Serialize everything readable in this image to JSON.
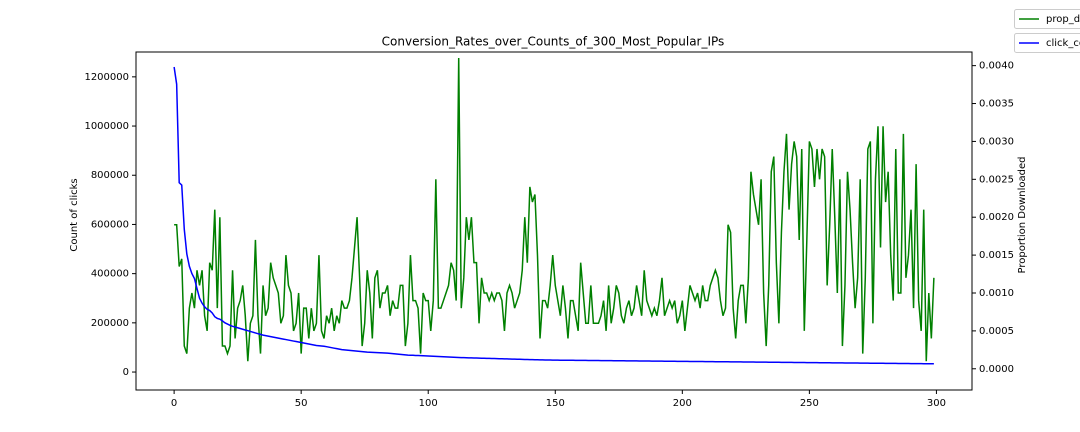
{
  "chart_data": {
    "type": "line",
    "title": "Conversion_Rates_over_Counts_of_300_Most_Popular_IPs",
    "ylabel": "Count of clicks",
    "y2label": "Proportion Downloaded",
    "legend": "upper right",
    "xlim": [
      -15,
      314
    ],
    "xticks": [
      0,
      50,
      100,
      150,
      200,
      250,
      300
    ],
    "ylim": [
      -73000,
      1301000
    ],
    "yticks": [
      0,
      200000,
      400000,
      600000,
      800000,
      1000000,
      1200000
    ],
    "y2lim": [
      -0.00028,
      0.00418
    ],
    "y2ticks": [
      {
        "value": 0,
        "label": "0.0000"
      },
      {
        "value": 0.0005,
        "label": "0.0005"
      },
      {
        "value": 0.001,
        "label": "0.0010"
      },
      {
        "value": 0.0015,
        "label": "0.0015"
      },
      {
        "value": 0.002,
        "label": "0.0020"
      },
      {
        "value": 0.0025,
        "label": "0.0025"
      },
      {
        "value": 0.003,
        "label": "0.0030"
      },
      {
        "value": 0.0035,
        "label": "0.0035"
      },
      {
        "value": 0.004,
        "label": "0.0040"
      }
    ],
    "x": [
      0,
      1,
      2,
      3,
      4,
      5,
      6,
      7,
      8,
      9,
      10,
      11,
      12,
      13,
      14,
      15,
      16,
      17,
      18,
      19,
      20,
      21,
      22,
      23,
      24,
      25,
      26,
      27,
      28,
      29,
      30,
      31,
      32,
      33,
      34,
      35,
      36,
      37,
      38,
      39,
      40,
      41,
      42,
      43,
      44,
      45,
      46,
      47,
      48,
      49,
      50,
      51,
      52,
      53,
      54,
      55,
      56,
      57,
      58,
      59,
      60,
      61,
      62,
      63,
      64,
      65,
      66,
      67,
      68,
      69,
      70,
      71,
      72,
      73,
      74,
      75,
      76,
      77,
      78,
      79,
      80,
      81,
      82,
      83,
      84,
      85,
      86,
      87,
      88,
      89,
      90,
      91,
      92,
      93,
      94,
      95,
      96,
      97,
      98,
      99,
      100,
      101,
      102,
      103,
      104,
      105,
      106,
      107,
      108,
      109,
      110,
      111,
      112,
      113,
      114,
      115,
      116,
      117,
      118,
      119,
      120,
      121,
      122,
      123,
      124,
      125,
      126,
      127,
      128,
      129,
      130,
      131,
      132,
      133,
      134,
      135,
      136,
      137,
      138,
      139,
      140,
      141,
      142,
      143,
      144,
      145,
      146,
      147,
      148,
      149,
      150,
      151,
      152,
      153,
      154,
      155,
      156,
      157,
      158,
      159,
      160,
      161,
      162,
      163,
      164,
      165,
      166,
      167,
      168,
      169,
      170,
      171,
      172,
      173,
      174,
      175,
      176,
      177,
      178,
      179,
      180,
      181,
      182,
      183,
      184,
      185,
      186,
      187,
      188,
      189,
      190,
      191,
      192,
      193,
      194,
      195,
      196,
      197,
      198,
      199,
      200,
      201,
      202,
      203,
      204,
      205,
      206,
      207,
      208,
      209,
      210,
      211,
      212,
      213,
      214,
      215,
      216,
      217,
      218,
      219,
      220,
      221,
      222,
      223,
      224,
      225,
      226,
      227,
      228,
      229,
      230,
      231,
      232,
      233,
      234,
      235,
      236,
      237,
      238,
      239,
      240,
      241,
      242,
      243,
      244,
      245,
      246,
      247,
      248,
      249,
      250,
      251,
      252,
      253,
      254,
      255,
      256,
      257,
      258,
      259,
      260,
      261,
      262,
      263,
      264,
      265,
      266,
      267,
      268,
      269,
      270,
      271,
      272,
      273,
      274,
      275,
      276,
      277,
      278,
      279,
      280,
      281,
      282,
      283,
      284,
      285,
      286,
      287,
      288,
      289,
      290,
      291,
      292,
      293,
      294,
      295,
      296,
      297,
      298,
      299
    ],
    "series": [
      {
        "name": "prop_d",
        "color": "#008000",
        "axis": "y2",
        "values": [
          0.0019,
          0.0019,
          0.00135,
          0.00145,
          0.0003,
          0.0002,
          0.0008,
          0.001,
          0.0008,
          0.0013,
          0.0011,
          0.0013,
          0.0007,
          0.0005,
          0.0014,
          0.0013,
          0.0021,
          0.0008,
          0.002,
          0.0003,
          0.0003,
          0.0002,
          0.0003,
          0.0013,
          0.0004,
          0.0008,
          0.0009,
          0.0011,
          0.0007,
          0.0001,
          0.0006,
          0.0007,
          0.0017,
          0.0007,
          0.0002,
          0.0011,
          0.0007,
          0.0008,
          0.0014,
          0.0012,
          0.0011,
          0.001,
          0.0006,
          0.0007,
          0.0015,
          0.0011,
          0.001,
          0.0005,
          0.0006,
          0.001,
          0.0002,
          0.0008,
          0.0008,
          0.0004,
          0.0008,
          0.0005,
          0.0006,
          0.0015,
          0.0005,
          0.0004,
          0.0007,
          0.0006,
          0.0008,
          0.0005,
          0.0007,
          0.0006,
          0.0009,
          0.0008,
          0.0008,
          0.0009,
          0.0012,
          0.0016,
          0.002,
          0.0012,
          0.0003,
          0.0006,
          0.0013,
          0.001,
          0.0004,
          0.0012,
          0.0013,
          0.0008,
          0.001,
          0.001,
          0.0011,
          0.0007,
          0.0009,
          0.0008,
          0.0008,
          0.0011,
          0.0011,
          0.0003,
          0.0006,
          0.0015,
          0.0009,
          0.0009,
          0.0008,
          0.0002,
          0.001,
          0.0009,
          0.0009,
          0.0005,
          0.0009,
          0.0025,
          0.0008,
          0.0008,
          0.0009,
          0.001,
          0.0011,
          0.0014,
          0.0013,
          0.0009,
          0.0041,
          0.0008,
          0.0012,
          0.002,
          0.0017,
          0.002,
          0.0014,
          0.0014,
          0.0006,
          0.0012,
          0.001,
          0.001,
          0.0009,
          0.001,
          0.0009,
          0.001,
          0.001,
          0.0009,
          0.0005,
          0.001,
          0.0011,
          0.001,
          0.0008,
          0.0009,
          0.001,
          0.0013,
          0.002,
          0.0014,
          0.0024,
          0.0022,
          0.0023,
          0.0015,
          0.0004,
          0.0009,
          0.0009,
          0.0008,
          0.0011,
          0.0015,
          0.0011,
          0.0009,
          0.0007,
          0.0011,
          0.0008,
          0.0004,
          0.0009,
          0.0009,
          0.0007,
          0.0005,
          0.0014,
          0.001,
          0.0006,
          0.0006,
          0.0011,
          0.0006,
          0.0006,
          0.0006,
          0.0007,
          0.0009,
          0.0005,
          0.0011,
          0.0006,
          0.0008,
          0.0011,
          0.001,
          0.0007,
          0.0006,
          0.0008,
          0.0009,
          0.0007,
          0.0008,
          0.0011,
          0.0009,
          0.0007,
          0.0013,
          0.0009,
          0.0008,
          0.0007,
          0.0008,
          0.0007,
          0.0009,
          0.0012,
          0.0007,
          0.0008,
          0.0009,
          0.0008,
          0.0009,
          0.0006,
          0.0007,
          0.0009,
          0.0005,
          0.0008,
          0.0011,
          0.001,
          0.0009,
          0.001,
          0.0008,
          0.0011,
          0.0009,
          0.0009,
          0.0011,
          0.0012,
          0.0013,
          0.0012,
          0.0009,
          0.0007,
          0.0008,
          0.0019,
          0.0018,
          0.0008,
          0.0004,
          0.0009,
          0.0011,
          0.0011,
          0.0006,
          0.0012,
          0.0026,
          0.0023,
          0.0021,
          0.0019,
          0.0025,
          0.001,
          0.0003,
          0.0011,
          0.0026,
          0.0028,
          0.0014,
          0.0006,
          0.0018,
          0.0026,
          0.0031,
          0.0021,
          0.0027,
          0.003,
          0.0028,
          0.0017,
          0.0029,
          0.0005,
          0.0017,
          0.003,
          0.0029,
          0.0024,
          0.0029,
          0.0025,
          0.0029,
          0.0028,
          0.0011,
          0.0019,
          0.0029,
          0.002,
          0.001,
          0.0025,
          0.0003,
          0.0011,
          0.0026,
          0.0021,
          0.0014,
          0.0008,
          0.0012,
          0.0025,
          0.0002,
          0.0012,
          0.0029,
          0.003,
          0.0006,
          0.0025,
          0.0032,
          0.0016,
          0.0032,
          0.0022,
          0.0026,
          0.0015,
          0.0009,
          0.0029,
          0.001,
          0.001,
          0.0031,
          0.0012,
          0.0015,
          0.0021,
          0.0008,
          0.0027,
          0.0009,
          0.0005,
          0.0021,
          0.0001,
          0.001,
          0.0004,
          0.0012
        ]
      },
      {
        "name": "click_co",
        "color": "#0000ff",
        "axis": "y",
        "values": [
          1240000,
          1170000,
          770000,
          760000,
          580000,
          480000,
          430000,
          400000,
          380000,
          340000,
          300000,
          280000,
          265000,
          255000,
          250000,
          240000,
          225000,
          218000,
          215000,
          208000,
          200000,
          195000,
          190000,
          186000,
          183000,
          180000,
          177000,
          174000,
          171000,
          168000,
          165000,
          162000,
          159000,
          156000,
          153000,
          150000,
          148000,
          146000,
          144000,
          142000,
          140000,
          138000,
          136000,
          134000,
          132000,
          130000,
          128000,
          126000,
          124000,
          122000,
          120000,
          118000,
          116000,
          114000,
          112000,
          110000,
          108000,
          107000,
          106000,
          105000,
          103000,
          101000,
          99000,
          97000,
          95000,
          93000,
          91000,
          90000,
          89000,
          88000,
          87000,
          86000,
          85000,
          84000,
          83000,
          82000,
          81000,
          80500,
          80000,
          79500,
          79000,
          78500,
          78000,
          77500,
          77000,
          76000,
          75000,
          74000,
          73000,
          72000,
          71000,
          70000,
          69000,
          68500,
          68000,
          67500,
          67000,
          66500,
          66000,
          65500,
          65000,
          64500,
          64000,
          63500,
          63000,
          62500,
          62000,
          61500,
          61000,
          60500,
          60000,
          59500,
          59000,
          58700,
          58400,
          58100,
          57800,
          57500,
          57200,
          56900,
          56600,
          56300,
          56000,
          55700,
          55400,
          55100,
          54800,
          54500,
          54200,
          53900,
          53600,
          53300,
          53000,
          52700,
          52400,
          52100,
          51800,
          51500,
          51200,
          50900,
          50600,
          50300,
          50000,
          49800,
          49600,
          49400,
          49200,
          49000,
          48800,
          48600,
          48400,
          48300,
          48200,
          48100,
          48000,
          47900,
          47800,
          47700,
          47600,
          47500,
          47400,
          47300,
          47200,
          47100,
          47000,
          46900,
          46800,
          46700,
          46600,
          46500,
          46400,
          46300,
          46200,
          46100,
          46000,
          45900,
          45800,
          45700,
          45600,
          45500,
          45400,
          45300,
          45200,
          45100,
          45000,
          44900,
          44800,
          44700,
          44600,
          44500,
          44400,
          44300,
          44200,
          44100,
          44000,
          43900,
          43800,
          43700,
          43600,
          43500,
          43400,
          43300,
          43200,
          43100,
          43000,
          42900,
          42800,
          42700,
          42600,
          42500,
          42400,
          42300,
          42200,
          42100,
          42000,
          41900,
          41800,
          41700,
          41600,
          41500,
          41400,
          41300,
          41200,
          41100,
          41000,
          40900,
          40800,
          40700,
          40600,
          40500,
          40400,
          40300,
          40200,
          40100,
          40000,
          39900,
          39800,
          39700,
          39600,
          39500,
          39400,
          39300,
          39200,
          39100,
          39000,
          38900,
          38800,
          38700,
          38600,
          38500,
          38400,
          38300,
          38200,
          38100,
          38000,
          37900,
          37800,
          37700,
          37600,
          37500,
          37400,
          37300,
          37200,
          37100,
          37000,
          36900,
          36800,
          36700,
          36600,
          36500,
          36400,
          36300,
          36200,
          36100,
          36000,
          35900,
          35800,
          35700,
          35600,
          35500,
          35400,
          35300,
          35200,
          35100,
          35000,
          34900,
          34800,
          34700,
          34600,
          34500,
          34400,
          34300,
          34200,
          34100,
          34000,
          33900,
          33800,
          33700,
          33600,
          33500
        ]
      }
    ]
  }
}
